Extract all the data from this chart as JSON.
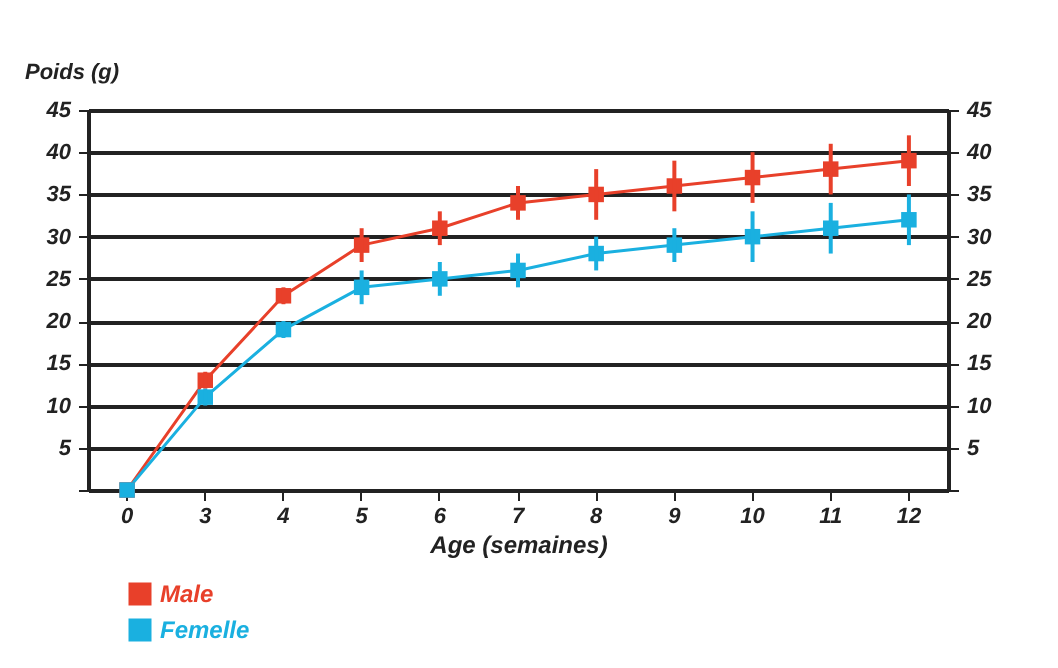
{
  "chart_data": {
    "type": "line",
    "ylabel": "Poids (g)",
    "xlabel": "Age (semaines)",
    "categories": [
      "0",
      "3",
      "4",
      "5",
      "6",
      "7",
      "8",
      "9",
      "10",
      "11",
      "12"
    ],
    "series": [
      {
        "name": "Male",
        "color": "#e8402a",
        "values": [
          0,
          13,
          23,
          29,
          31,
          34,
          35,
          36,
          37,
          38,
          39
        ],
        "errors": [
          null,
          [
            12,
            14
          ],
          [
            22,
            24
          ],
          [
            27,
            31
          ],
          [
            29,
            33
          ],
          [
            32,
            36
          ],
          [
            32,
            38
          ],
          [
            33,
            39
          ],
          [
            34,
            40
          ],
          [
            35,
            41
          ],
          [
            36,
            42
          ]
        ]
      },
      {
        "name": "Femelle",
        "color": "#1ab0e0",
        "values": [
          0,
          11,
          19,
          24,
          25,
          26,
          28,
          29,
          30,
          31,
          32
        ],
        "errors": [
          null,
          [
            10,
            12
          ],
          [
            18,
            20
          ],
          [
            22,
            26
          ],
          [
            23,
            27
          ],
          [
            24,
            28
          ],
          [
            26,
            30
          ],
          [
            27,
            31
          ],
          [
            27,
            33
          ],
          [
            28,
            34
          ],
          [
            29,
            35
          ]
        ]
      }
    ],
    "ylim": [
      0,
      45
    ],
    "yticks": [
      {
        "value": 0,
        "label": null
      },
      5,
      10,
      15,
      20,
      25,
      30,
      35,
      40,
      45
    ],
    "y2lim": [
      0,
      45
    ],
    "y2ticks": [
      {
        "value": 0,
        "label": null
      },
      5,
      10,
      15,
      20,
      25,
      30,
      35,
      40,
      45
    ],
    "grid": "y",
    "legend": "bottom left",
    "marker": "square",
    "line_style": "solid"
  }
}
